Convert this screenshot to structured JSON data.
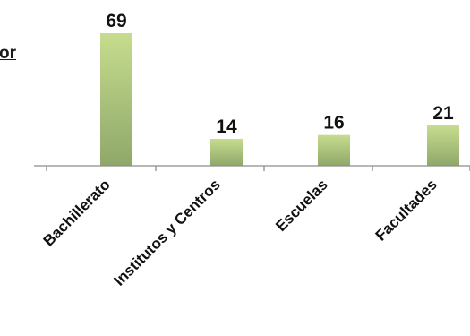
{
  "chart_data": {
    "type": "bar",
    "title": "or",
    "categories": [
      "Bachillerato",
      "Institutos y Centros",
      "Escuelas",
      "Facultades"
    ],
    "values": [
      69,
      14,
      16,
      21
    ],
    "data_labels": [
      "69",
      "14",
      "16",
      "21"
    ],
    "ylim": [
      0,
      69
    ],
    "grid": false,
    "legend": "none",
    "colors": {
      "bar_top": "#c6dc8e",
      "bar_bottom": "#8fa86a",
      "axis": "#8c8c8c"
    }
  }
}
